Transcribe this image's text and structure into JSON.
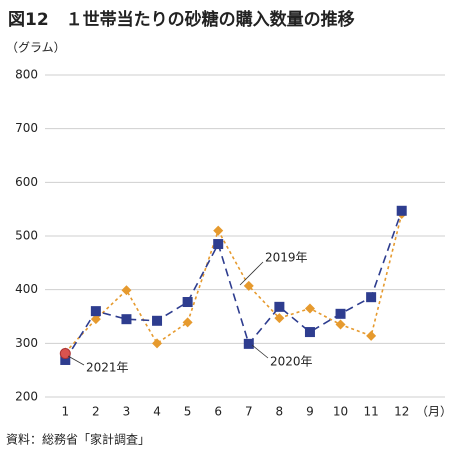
{
  "chart_data": {
    "type": "line",
    "title": "図12　１世帯当たりの砂糖の購入数量の推移",
    "y_label": "（グラム）",
    "x_label": "（月）",
    "source": "資料：総務省「家計調査」",
    "categories": [
      "1",
      "2",
      "3",
      "4",
      "5",
      "6",
      "7",
      "8",
      "9",
      "10",
      "11",
      "12"
    ],
    "ylim": [
      200,
      800
    ],
    "yticks": [
      200,
      300,
      400,
      500,
      600,
      700,
      800
    ],
    "grid": true,
    "series": [
      {
        "name": "2019年",
        "color": "#e69a2e",
        "marker": "diamond",
        "dash": "3,3",
        "values": [
          283,
          345,
          399,
          300,
          339,
          510,
          407,
          347,
          365,
          335,
          314,
          541
        ]
      },
      {
        "name": "2020年",
        "color": "#2e3d8f",
        "marker": "square",
        "dash": "8,5",
        "values": [
          269,
          360,
          345,
          342,
          377,
          485,
          299,
          368,
          321,
          355,
          386,
          547
        ]
      },
      {
        "name": "2021年",
        "color": "#d9534f",
        "marker": "circle",
        "dash": "",
        "values": [
          281,
          null,
          null,
          null,
          null,
          null,
          null,
          null,
          null,
          null,
          null,
          null
        ]
      }
    ]
  }
}
